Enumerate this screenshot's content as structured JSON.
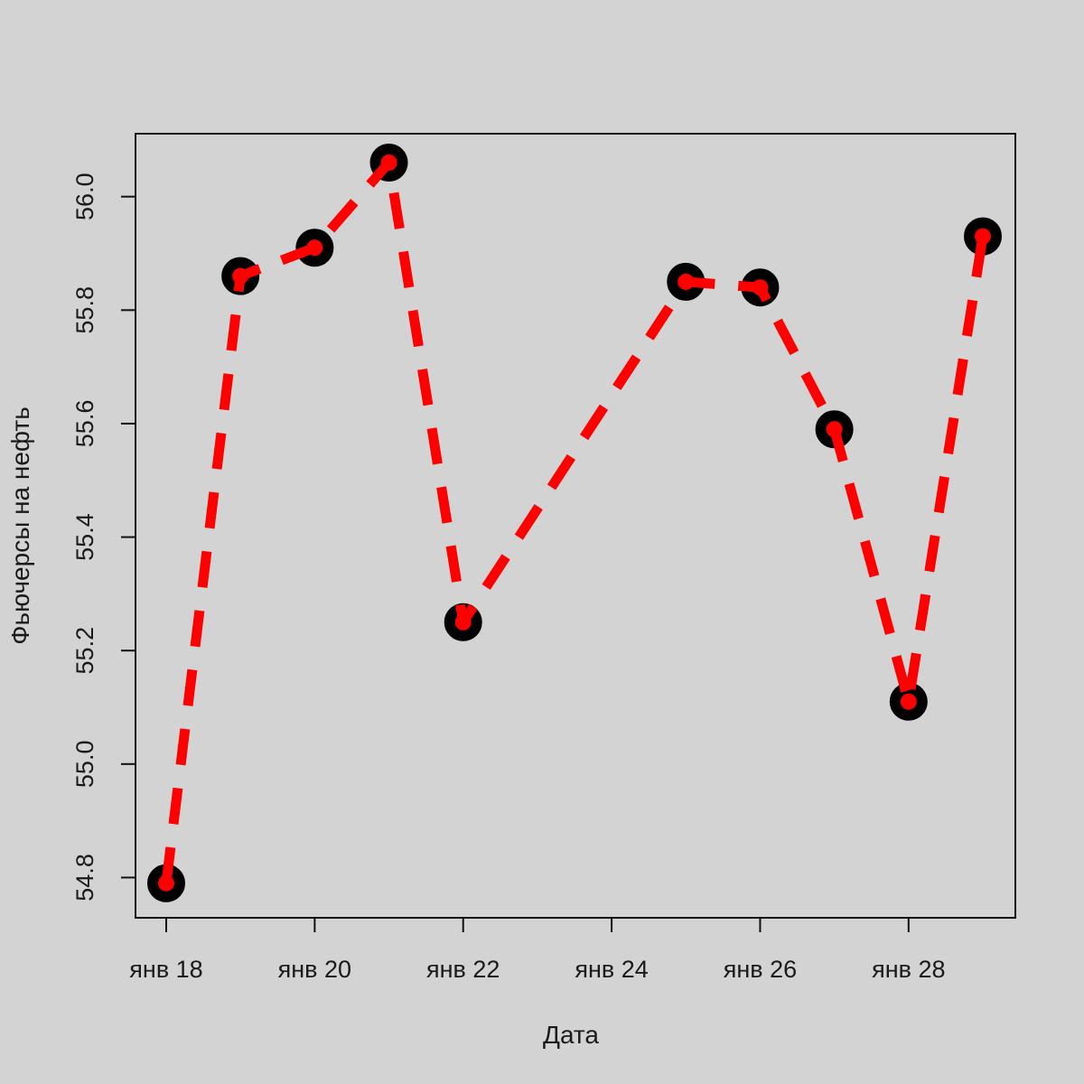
{
  "chart_data": {
    "type": "line",
    "xlabel": "Дата",
    "ylabel": "Фьючерсы на нефть",
    "x_tick_labels": [
      "янв 18",
      "янв 20",
      "янв 22",
      "янв 24",
      "янв 26",
      "янв 28"
    ],
    "x_ticks": [
      "2017-01-18",
      "2017-01-20",
      "2017-01-22",
      "2017-01-24",
      "2017-01-26",
      "2017-01-28"
    ],
    "y_tick_labels": [
      "54.8",
      "55.0",
      "55.2",
      "55.4",
      "55.6",
      "55.8",
      "56.0"
    ],
    "y_ticks": [
      54.8,
      55.0,
      55.2,
      55.4,
      55.6,
      55.8,
      56.0
    ],
    "xlim": [
      "2017-01-18",
      "2017-01-29"
    ],
    "ylim": [
      54.78,
      56.06
    ],
    "grid": false,
    "series": [
      {
        "x": [
          "2017-01-18",
          "2017-01-19",
          "2017-01-20",
          "2017-01-21",
          "2017-01-22",
          "2017-01-25",
          "2017-01-26",
          "2017-01-27",
          "2017-01-28",
          "2017-01-29"
        ],
        "values": [
          54.79,
          55.86,
          55.91,
          56.06,
          55.25,
          55.85,
          55.84,
          55.59,
          55.11,
          55.93
        ],
        "line_color": "#ff0000",
        "line_style": "dashed",
        "marker_edge_color": "#000000",
        "marker_fill_color": "#ff0000"
      }
    ]
  }
}
